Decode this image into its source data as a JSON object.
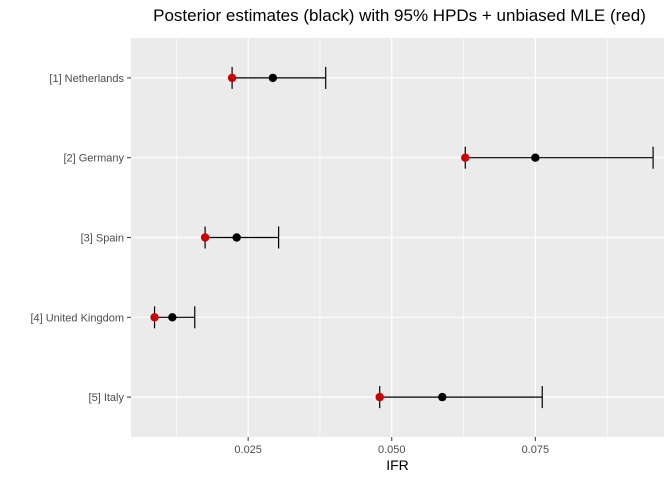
{
  "chart_data": {
    "type": "scatter",
    "title": "Posterior estimates (black) with 95% HPDs + unbiased MLE (red)",
    "xlabel": "IFR",
    "ylabel": "",
    "xlim": [
      0.0046,
      0.0974
    ],
    "x_ticks": [
      0.025,
      0.05,
      0.075
    ],
    "x_tick_labels": [
      "0.025",
      "0.050",
      "0.075"
    ],
    "grid": true,
    "categories": [
      "[1] Netherlands",
      "[2] Germany",
      "[3] Spain",
      "[4] United Kingdom",
      "[5] Italy"
    ],
    "posterior": [
      0.0293,
      0.075,
      0.023,
      0.0118,
      0.0588
    ],
    "hpd_lower": [
      0.0222,
      0.0628,
      0.0175,
      0.0087,
      0.0479
    ],
    "hpd_upper": [
      0.0385,
      0.0955,
      0.0303,
      0.0157,
      0.0762
    ],
    "mle": [
      0.0222,
      0.0628,
      0.0175,
      0.0087,
      0.0479
    ],
    "colors": {
      "posterior": "#000000",
      "mle": "#cc0000",
      "panel": "#ebebeb",
      "grid": "#ffffff"
    }
  }
}
